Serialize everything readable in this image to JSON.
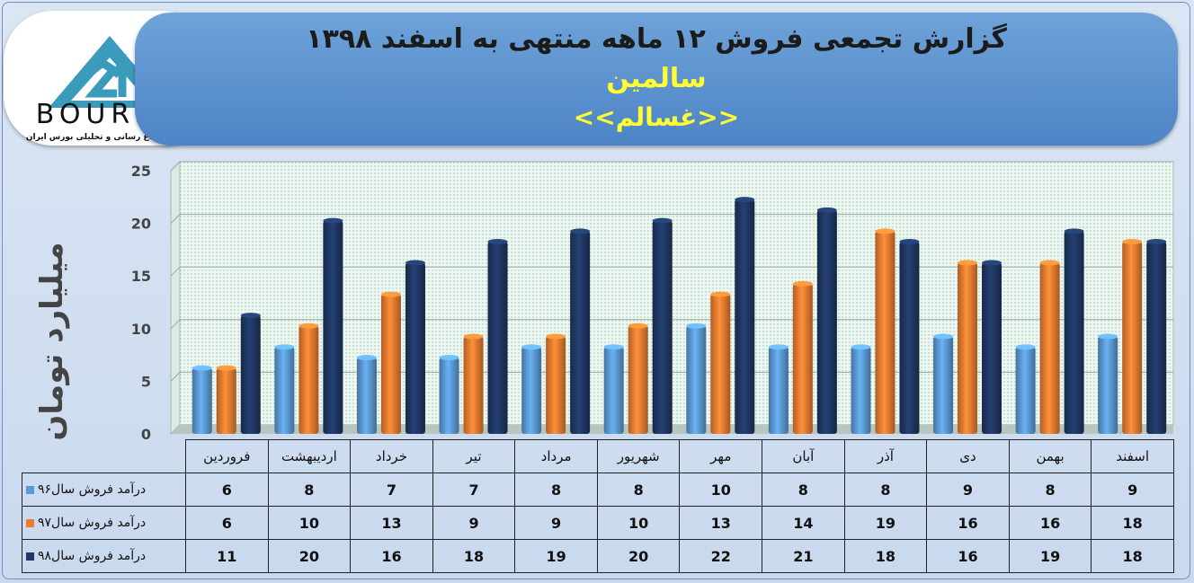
{
  "header": {
    "title": "گزارش تجمعی فروش  ۱۲ ماهه منتهی به اسفند ۱۳۹۸",
    "company": "سالمین",
    "symbol": "<<غسالم>>"
  },
  "logo": {
    "text": "BOURSE",
    "subtitle": "پایگاه اطلاع رسانی و تحلیلی بورس ایران"
  },
  "colors": {
    "series96": "#5b9bd5",
    "series97": "#ed7d31",
    "series98": "#1f3864",
    "banner": "#5b8fcf",
    "title_highlight": "#ffff33"
  },
  "chart_data": {
    "type": "bar",
    "title": "گزارش تجمعی فروش  ۱۲ ماهه منتهی به اسفند ۱۳۹۸",
    "ylabel": "میلیارد تومان",
    "ylim": [
      0,
      25
    ],
    "yticks": [
      "0",
      "5",
      "10",
      "15",
      "20",
      "25"
    ],
    "grid": true,
    "categories": [
      "فروردین",
      "اردیبهشت",
      "خرداد",
      "تیر",
      "مرداد",
      "شهریور",
      "مهر",
      "آبان",
      "آذر",
      "دی",
      "بهمن",
      "اسفند"
    ],
    "series": [
      {
        "name": "درآمد فروش سال۹۶",
        "color": "#5b9bd5",
        "values": [
          6,
          8,
          7,
          7,
          8,
          8,
          10,
          8,
          8,
          9,
          8,
          9
        ]
      },
      {
        "name": "درآمد فروش سال۹۷",
        "color": "#ed7d31",
        "values": [
          6,
          10,
          13,
          9,
          9,
          10,
          13,
          14,
          19,
          16,
          16,
          18
        ]
      },
      {
        "name": "درآمد فروش سال۹۸",
        "color": "#1f3864",
        "values": [
          11,
          20,
          16,
          18,
          19,
          20,
          22,
          21,
          18,
          16,
          19,
          18
        ]
      }
    ]
  }
}
